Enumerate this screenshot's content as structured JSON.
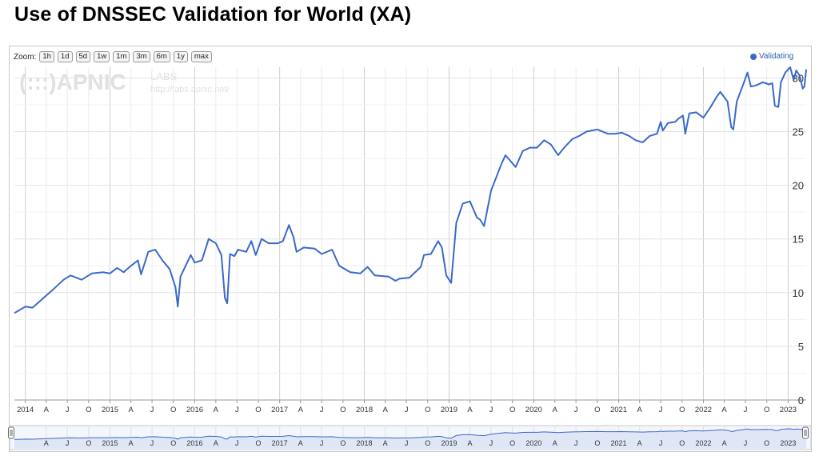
{
  "page": {
    "title": "Use of DNSSEC Validation for World (XA)"
  },
  "zoom": {
    "label": "Zoom:",
    "buttons": [
      "1h",
      "1d",
      "5d",
      "1w",
      "1m",
      "3m",
      "6m",
      "1y",
      "max"
    ]
  },
  "watermark": {
    "logo": "(:::)APNIC",
    "labs": "LABS",
    "url": "http://labs.apnic.net/"
  },
  "chart_data": {
    "type": "line",
    "title": "Use of DNSSEC Validation for World (XA)",
    "xlabel": "",
    "ylabel": "",
    "x_range": [
      "2013-11-15",
      "2023-03-20"
    ],
    "ylim": [
      0,
      31
    ],
    "y_ticks": [
      0,
      5,
      10,
      15,
      20,
      25,
      30
    ],
    "x_tick_labels": [
      "2014",
      "A",
      "J",
      "O",
      "2015",
      "A",
      "J",
      "O",
      "2016",
      "A",
      "J",
      "O",
      "2017",
      "A",
      "J",
      "O",
      "2018",
      "A",
      "J",
      "O",
      "2019",
      "A",
      "J",
      "O",
      "2020",
      "A",
      "J",
      "O",
      "2021",
      "A",
      "J",
      "O",
      "2022",
      "A",
      "J",
      "O",
      "2023"
    ],
    "navigator_tick_labels": [
      "A",
      "J",
      "O",
      "2015",
      "A",
      "J",
      "O",
      "2016",
      "A",
      "J",
      "O",
      "2017",
      "A",
      "J",
      "O",
      "2018",
      "A",
      "J",
      "O",
      "2019",
      "A",
      "J",
      "O",
      "2020",
      "A",
      "J",
      "O",
      "2021",
      "A",
      "J",
      "O",
      "2022",
      "A",
      "J",
      "O",
      "2023"
    ],
    "grid": true,
    "legend_position": "top-right",
    "series": [
      {
        "name": "Validating",
        "color": "#3b69c9",
        "points": [
          [
            "2013-11-15",
            8.1
          ],
          [
            "2013-12-01",
            8.3
          ],
          [
            "2014-01-01",
            8.7
          ],
          [
            "2014-02-01",
            8.6
          ],
          [
            "2014-03-15",
            9.4
          ],
          [
            "2014-05-01",
            10.3
          ],
          [
            "2014-06-15",
            11.2
          ],
          [
            "2014-07-15",
            11.6
          ],
          [
            "2014-09-01",
            11.2
          ],
          [
            "2014-10-15",
            11.8
          ],
          [
            "2014-12-01",
            11.9
          ],
          [
            "2015-01-01",
            11.8
          ],
          [
            "2015-02-01",
            12.3
          ],
          [
            "2015-03-01",
            11.9
          ],
          [
            "2015-04-01",
            12.5
          ],
          [
            "2015-05-01",
            13.0
          ],
          [
            "2015-05-15",
            11.7
          ],
          [
            "2015-06-15",
            13.8
          ],
          [
            "2015-07-15",
            14.0
          ],
          [
            "2015-08-15",
            13.0
          ],
          [
            "2015-09-15",
            12.2
          ],
          [
            "2015-10-10",
            10.5
          ],
          [
            "2015-10-20",
            8.7
          ],
          [
            "2015-11-01",
            11.5
          ],
          [
            "2015-12-15",
            13.5
          ],
          [
            "2016-01-01",
            12.8
          ],
          [
            "2016-02-01",
            13.0
          ],
          [
            "2016-03-01",
            15.0
          ],
          [
            "2016-04-01",
            14.6
          ],
          [
            "2016-04-25",
            13.5
          ],
          [
            "2016-05-10",
            9.5
          ],
          [
            "2016-05-20",
            9.0
          ],
          [
            "2016-06-01",
            13.6
          ],
          [
            "2016-06-20",
            13.4
          ],
          [
            "2016-07-05",
            14.0
          ],
          [
            "2016-08-10",
            13.8
          ],
          [
            "2016-09-01",
            14.8
          ],
          [
            "2016-09-20",
            13.5
          ],
          [
            "2016-10-15",
            15.0
          ],
          [
            "2016-11-15",
            14.6
          ],
          [
            "2016-12-25",
            14.6
          ],
          [
            "2017-01-15",
            14.8
          ],
          [
            "2017-02-10",
            16.3
          ],
          [
            "2017-03-01",
            15.2
          ],
          [
            "2017-03-15",
            13.8
          ],
          [
            "2017-04-15",
            14.2
          ],
          [
            "2017-06-01",
            14.1
          ],
          [
            "2017-07-01",
            13.6
          ],
          [
            "2017-08-15",
            14.0
          ],
          [
            "2017-09-15",
            12.5
          ],
          [
            "2017-11-01",
            11.9
          ],
          [
            "2017-12-15",
            11.8
          ],
          [
            "2018-01-15",
            12.4
          ],
          [
            "2018-02-15",
            11.6
          ],
          [
            "2018-04-15",
            11.5
          ],
          [
            "2018-05-15",
            11.1
          ],
          [
            "2018-06-01",
            11.3
          ],
          [
            "2018-07-15",
            11.4
          ],
          [
            "2018-09-01",
            12.4
          ],
          [
            "2018-09-15",
            13.5
          ],
          [
            "2018-10-15",
            13.6
          ],
          [
            "2018-11-15",
            14.8
          ],
          [
            "2018-12-01",
            14.2
          ],
          [
            "2018-12-20",
            11.6
          ],
          [
            "2019-01-10",
            10.9
          ],
          [
            "2019-02-01",
            16.5
          ],
          [
            "2019-03-01",
            18.3
          ],
          [
            "2019-04-01",
            18.5
          ],
          [
            "2019-05-01",
            17.0
          ],
          [
            "2019-05-15",
            16.8
          ],
          [
            "2019-06-01",
            16.2
          ],
          [
            "2019-07-01",
            19.5
          ],
          [
            "2019-08-15",
            22.0
          ],
          [
            "2019-09-01",
            22.8
          ],
          [
            "2019-10-15",
            21.7
          ],
          [
            "2019-11-15",
            23.2
          ],
          [
            "2019-12-15",
            23.5
          ],
          [
            "2020-01-15",
            23.5
          ],
          [
            "2020-02-15",
            24.2
          ],
          [
            "2020-03-15",
            23.8
          ],
          [
            "2020-04-15",
            22.8
          ],
          [
            "2020-05-15",
            23.6
          ],
          [
            "2020-06-15",
            24.3
          ],
          [
            "2020-07-15",
            24.6
          ],
          [
            "2020-08-15",
            25.0
          ],
          [
            "2020-10-01",
            25.2
          ],
          [
            "2020-11-15",
            24.8
          ],
          [
            "2020-12-15",
            24.8
          ],
          [
            "2021-01-15",
            24.9
          ],
          [
            "2021-02-15",
            24.6
          ],
          [
            "2021-03-15",
            24.2
          ],
          [
            "2021-04-15",
            24.0
          ],
          [
            "2021-05-15",
            24.6
          ],
          [
            "2021-06-15",
            24.8
          ],
          [
            "2021-07-01",
            25.9
          ],
          [
            "2021-07-10",
            25.1
          ],
          [
            "2021-08-01",
            25.8
          ],
          [
            "2021-09-01",
            25.9
          ],
          [
            "2021-09-15",
            26.2
          ],
          [
            "2021-10-05",
            26.5
          ],
          [
            "2021-10-15",
            24.8
          ],
          [
            "2021-11-01",
            26.7
          ],
          [
            "2021-12-01",
            26.8
          ],
          [
            "2022-01-01",
            26.3
          ],
          [
            "2022-02-01",
            27.3
          ],
          [
            "2022-03-01",
            28.3
          ],
          [
            "2022-03-15",
            28.7
          ],
          [
            "2022-04-15",
            27.8
          ],
          [
            "2022-05-01",
            25.4
          ],
          [
            "2022-05-10",
            25.2
          ],
          [
            "2022-05-25",
            27.8
          ],
          [
            "2022-06-15",
            29.0
          ],
          [
            "2022-07-10",
            30.5
          ],
          [
            "2022-07-25",
            29.2
          ],
          [
            "2022-08-15",
            29.3
          ],
          [
            "2022-09-15",
            29.6
          ],
          [
            "2022-10-10",
            29.4
          ],
          [
            "2022-10-25",
            29.5
          ],
          [
            "2022-11-05",
            27.4
          ],
          [
            "2022-11-20",
            27.3
          ],
          [
            "2022-12-01",
            29.6
          ],
          [
            "2022-12-20",
            30.5
          ],
          [
            "2023-01-10",
            31.0
          ],
          [
            "2023-01-25",
            29.8
          ],
          [
            "2023-02-05",
            30.7
          ],
          [
            "2023-02-20",
            30.2
          ],
          [
            "2023-03-05",
            29.0
          ],
          [
            "2023-03-12",
            29.2
          ],
          [
            "2023-03-20",
            30.8
          ]
        ]
      }
    ]
  }
}
